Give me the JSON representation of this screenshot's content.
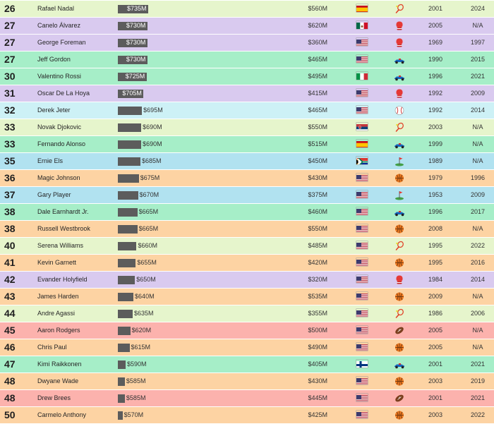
{
  "colors": {
    "tennis": "#e6f5cc",
    "boxing": "#d9caef",
    "motorsport": "#a6eec8",
    "baseball": "#cdf1f6",
    "golf": "#b1e2f0",
    "basketball": "#fdd3a3",
    "football": "#fcb2ad",
    "bar": "#5c5c5c"
  },
  "chart_data": {
    "type": "table",
    "scale_max_M": 735,
    "columns": [
      "rank",
      "name",
      "career_earnings",
      "peak_earnings",
      "country",
      "sport",
      "start_year",
      "end_year"
    ],
    "rows": [
      {
        "rank": "26",
        "name": "Rafael Nadal",
        "value": 735,
        "label": "$735M",
        "earn": "$560M",
        "flag": "spain",
        "sport": "tennis",
        "y1": "2001",
        "y2": "2024"
      },
      {
        "rank": "27",
        "name": "Canelo Álvarez",
        "value": 730,
        "label": "$730M",
        "earn": "$620M",
        "flag": "mexico",
        "sport": "boxing",
        "y1": "2005",
        "y2": "N/A"
      },
      {
        "rank": "27",
        "name": "George Foreman",
        "value": 730,
        "label": "$730M",
        "earn": "$360M",
        "flag": "usa",
        "sport": "boxing",
        "y1": "1969",
        "y2": "1997"
      },
      {
        "rank": "27",
        "name": "Jeff Gordon",
        "value": 730,
        "label": "$730M",
        "earn": "$465M",
        "flag": "usa",
        "sport": "motorsport",
        "y1": "1990",
        "y2": "2015"
      },
      {
        "rank": "30",
        "name": "Valentino Rossi",
        "value": 725,
        "label": "$725M",
        "earn": "$495M",
        "flag": "italy",
        "sport": "motorsport",
        "y1": "1996",
        "y2": "2021"
      },
      {
        "rank": "31",
        "name": "Oscar De La Hoya",
        "value": 705,
        "label": "$705M",
        "earn": "$415M",
        "flag": "usa",
        "sport": "boxing",
        "y1": "1992",
        "y2": "2009"
      },
      {
        "rank": "32",
        "name": "Derek Jeter",
        "value": 695,
        "label": "$695M",
        "earn": "$465M",
        "flag": "usa",
        "sport": "baseball",
        "y1": "1992",
        "y2": "2014"
      },
      {
        "rank": "33",
        "name": "Novak Djokovic",
        "value": 690,
        "label": "$690M",
        "earn": "$550M",
        "flag": "serbia",
        "sport": "tennis",
        "y1": "2003",
        "y2": "N/A"
      },
      {
        "rank": "33",
        "name": "Fernando Alonso",
        "value": 690,
        "label": "$690M",
        "earn": "$515M",
        "flag": "spain",
        "sport": "motorsport",
        "y1": "1999",
        "y2": "N/A"
      },
      {
        "rank": "35",
        "name": "Ernie Els",
        "value": 685,
        "label": "$685M",
        "earn": "$450M",
        "flag": "southafrica",
        "sport": "golf",
        "y1": "1989",
        "y2": "N/A"
      },
      {
        "rank": "36",
        "name": "Magic Johnson",
        "value": 675,
        "label": "$675M",
        "earn": "$430M",
        "flag": "usa",
        "sport": "basketball",
        "y1": "1979",
        "y2": "1996"
      },
      {
        "rank": "37",
        "name": "Gary Player",
        "value": 670,
        "label": "$670M",
        "earn": "$375M",
        "flag": "usa",
        "sport": "golf",
        "y1": "1953",
        "y2": "2009"
      },
      {
        "rank": "38",
        "name": "Dale Earnhardt Jr.",
        "value": 665,
        "label": "$665M",
        "earn": "$460M",
        "flag": "usa",
        "sport": "motorsport",
        "y1": "1996",
        "y2": "2017"
      },
      {
        "rank": "38",
        "name": "Russell Westbrook",
        "value": 665,
        "label": "$665M",
        "earn": "$550M",
        "flag": "usa",
        "sport": "basketball",
        "y1": "2008",
        "y2": "N/A"
      },
      {
        "rank": "40",
        "name": "Serena Williams",
        "value": 660,
        "label": "$660M",
        "earn": "$485M",
        "flag": "usa",
        "sport": "tennis",
        "y1": "1995",
        "y2": "2022"
      },
      {
        "rank": "41",
        "name": "Kevin Garnett",
        "value": 655,
        "label": "$655M",
        "earn": "$420M",
        "flag": "usa",
        "sport": "basketball",
        "y1": "1995",
        "y2": "2016"
      },
      {
        "rank": "42",
        "name": "Evander Holyfield",
        "value": 650,
        "label": "$650M",
        "earn": "$320M",
        "flag": "usa",
        "sport": "boxing",
        "y1": "1984",
        "y2": "2014"
      },
      {
        "rank": "43",
        "name": "James Harden",
        "value": 640,
        "label": "$640M",
        "earn": "$535M",
        "flag": "usa",
        "sport": "basketball",
        "y1": "2009",
        "y2": "N/A"
      },
      {
        "rank": "44",
        "name": "Andre Agassi",
        "value": 635,
        "label": "$635M",
        "earn": "$355M",
        "flag": "usa",
        "sport": "tennis",
        "y1": "1986",
        "y2": "2006"
      },
      {
        "rank": "45",
        "name": "Aaron Rodgers",
        "value": 620,
        "label": "$620M",
        "earn": "$500M",
        "flag": "usa",
        "sport": "football",
        "y1": "2005",
        "y2": "N/A"
      },
      {
        "rank": "46",
        "name": "Chris Paul",
        "value": 615,
        "label": "$615M",
        "earn": "$490M",
        "flag": "usa",
        "sport": "basketball",
        "y1": "2005",
        "y2": "N/A"
      },
      {
        "rank": "47",
        "name": "Kimi Raikkonen",
        "value": 590,
        "label": "$590M",
        "earn": "$405M",
        "flag": "finland",
        "sport": "motorsport",
        "y1": "2001",
        "y2": "2021"
      },
      {
        "rank": "48",
        "name": "Dwyane Wade",
        "value": 585,
        "label": "$585M",
        "earn": "$430M",
        "flag": "usa",
        "sport": "basketball",
        "y1": "2003",
        "y2": "2019"
      },
      {
        "rank": "48",
        "name": "Drew Brees",
        "value": 585,
        "label": "$585M",
        "earn": "$445M",
        "flag": "usa",
        "sport": "football",
        "y1": "2001",
        "y2": "2021"
      },
      {
        "rank": "50",
        "name": "Carmelo Anthony",
        "value": 570,
        "label": "$570M",
        "earn": "$425M",
        "flag": "usa",
        "sport": "basketball",
        "y1": "2003",
        "y2": "2022"
      }
    ]
  }
}
